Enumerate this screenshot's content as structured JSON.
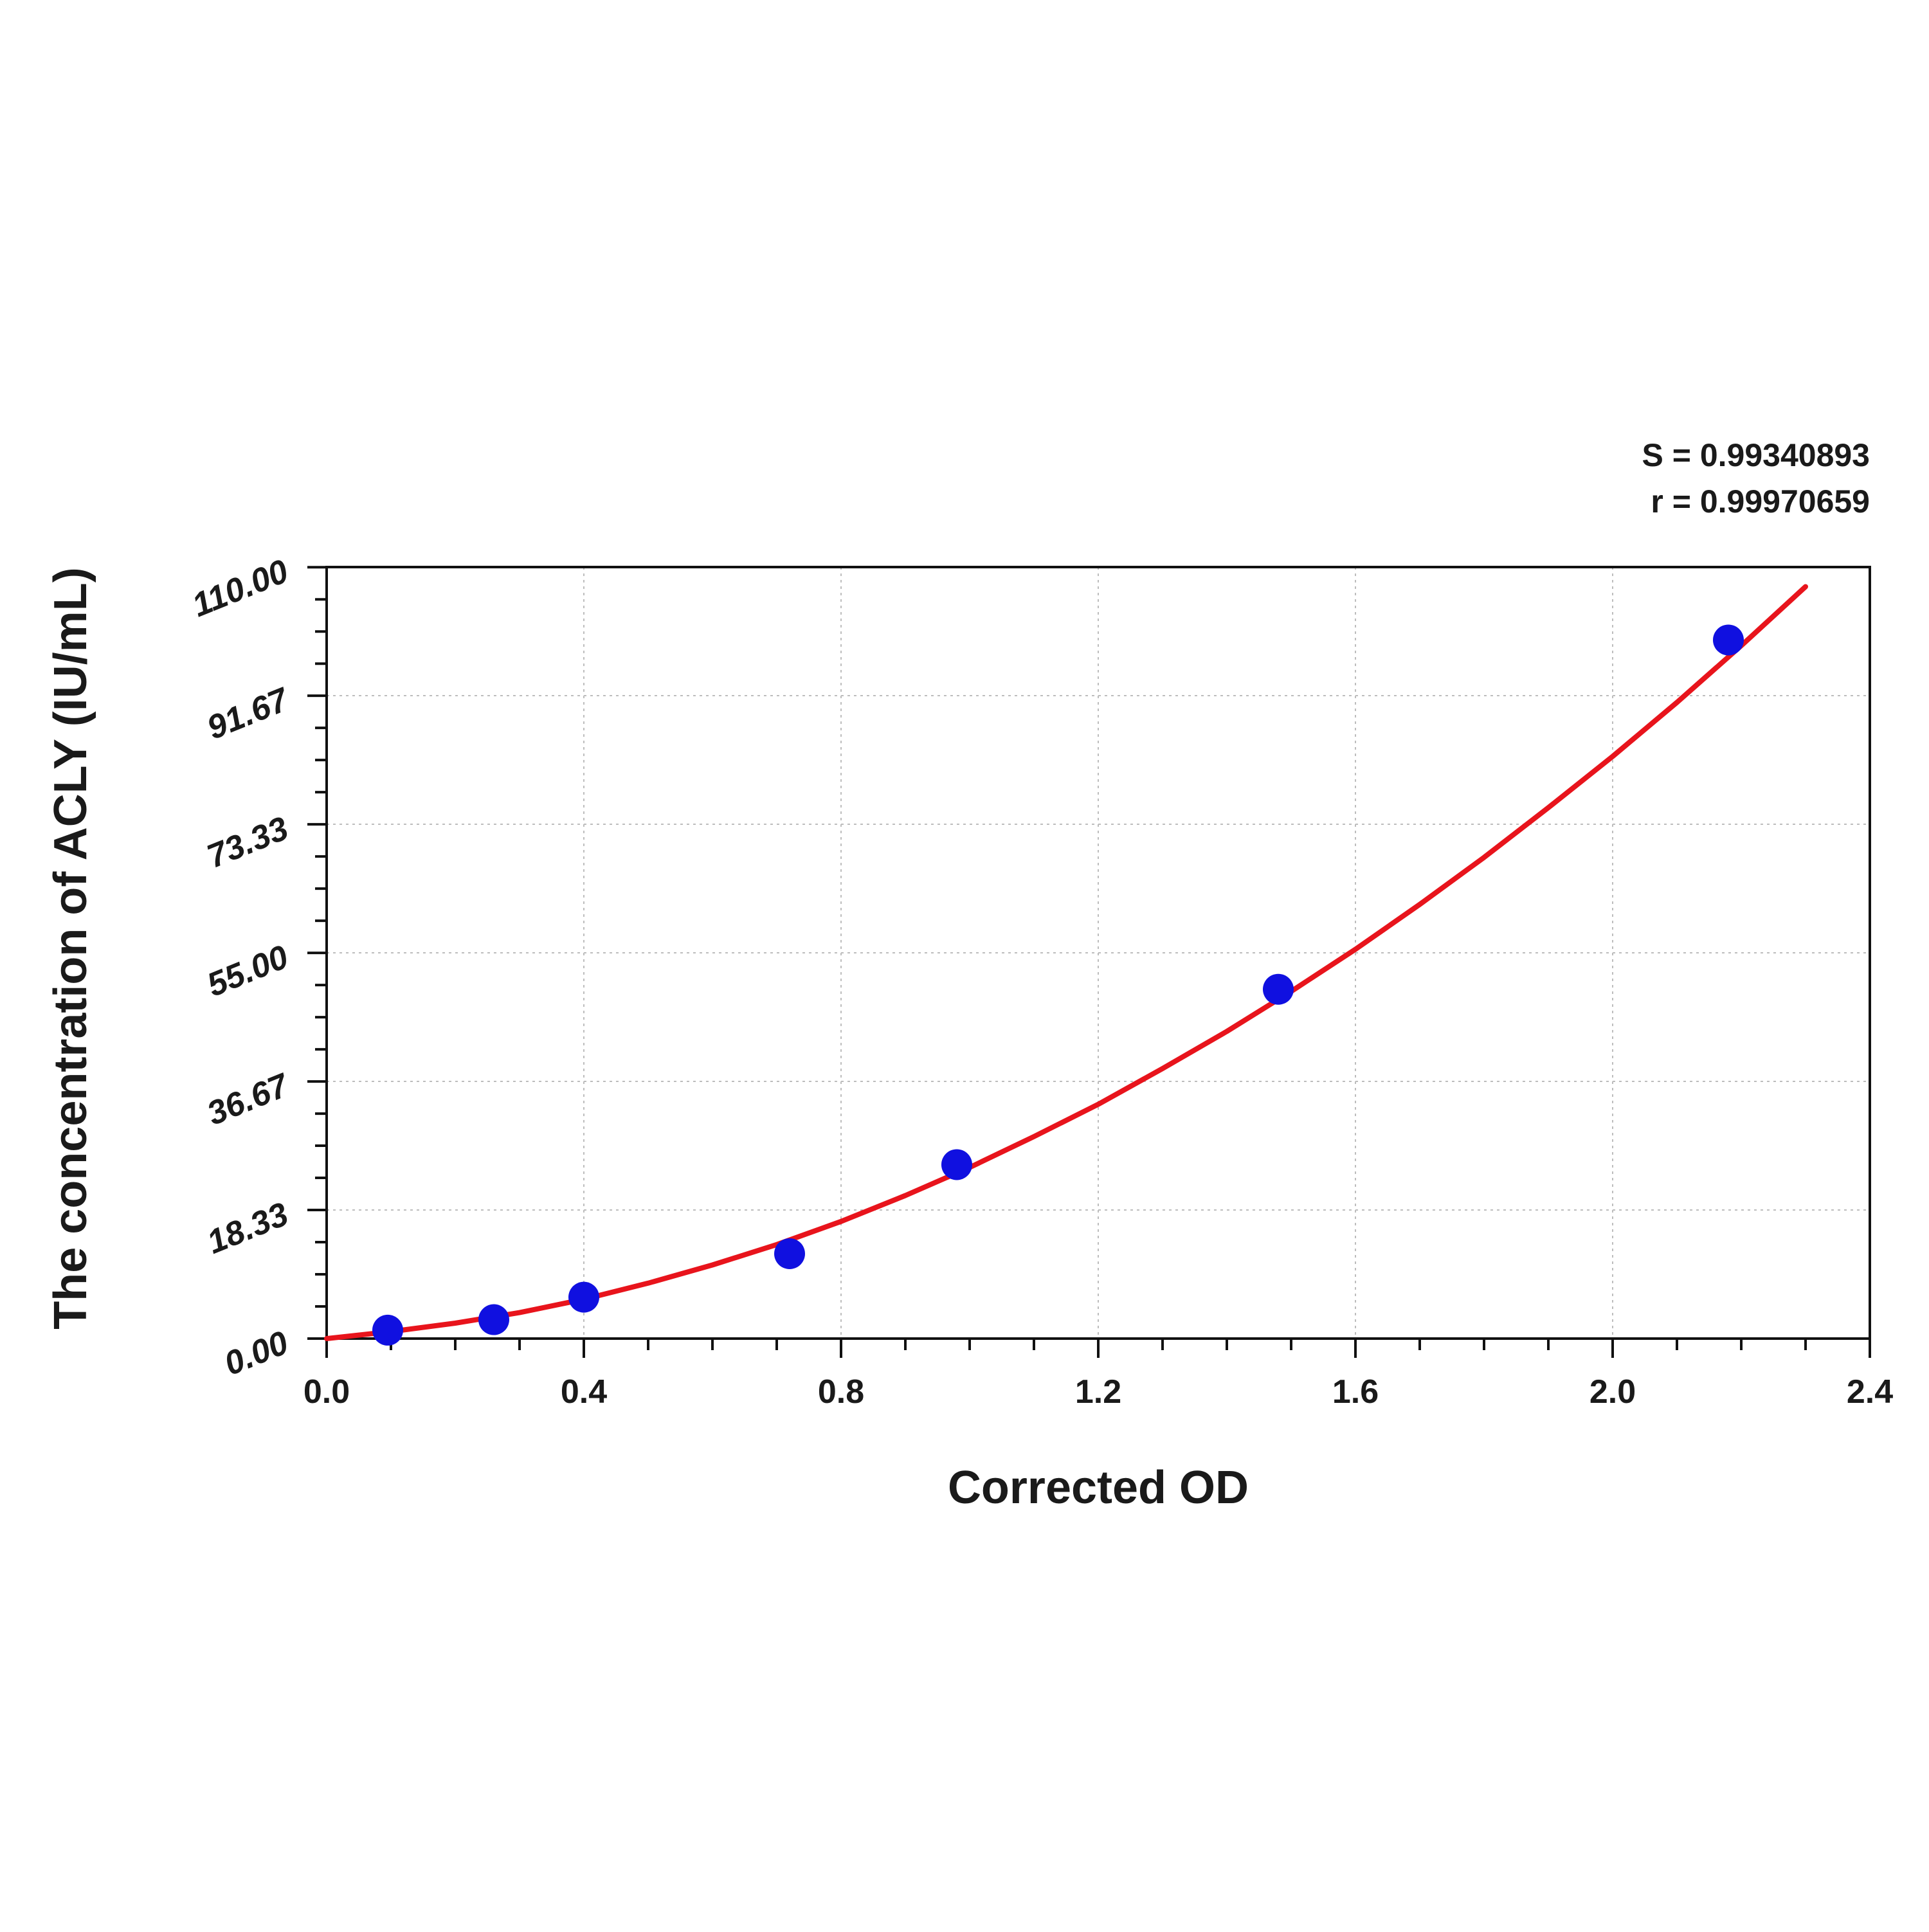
{
  "chart_data": {
    "type": "scatter",
    "title": "",
    "xlabel": "Corrected OD",
    "ylabel": "The concentration of ACLY (IU/mL)",
    "xlim": [
      0,
      2.4
    ],
    "ylim": [
      0,
      110
    ],
    "x_ticks": [
      "0.0",
      "0.4",
      "0.8",
      "1.2",
      "1.6",
      "2.0",
      "2.4"
    ],
    "x_tick_values": [
      0.0,
      0.4,
      0.8,
      1.2,
      1.6,
      2.0,
      2.4
    ],
    "y_ticks": [
      "0.00",
      "18.33",
      "36.67",
      "55.00",
      "73.33",
      "91.67",
      "110.00"
    ],
    "y_tick_values": [
      0,
      18.33,
      36.67,
      55.0,
      73.33,
      91.67,
      110.0
    ],
    "grid": true,
    "statistics": {
      "s_text": "S = 0.99340893",
      "r_text": "r = 0.99970659"
    },
    "series": [
      {
        "type": "scatter",
        "color": "#1010e0",
        "x": [
          0.095,
          0.26,
          0.4,
          0.72,
          0.98,
          1.48,
          2.18
        ],
        "y": [
          1.2,
          2.7,
          5.9,
          12.1,
          24.8,
          49.8,
          99.6
        ]
      },
      {
        "type": "line",
        "color": "#e8141c",
        "x": [
          0.0,
          0.1,
          0.2,
          0.3,
          0.4,
          0.5,
          0.6,
          0.7,
          0.8,
          0.9,
          1.0,
          1.1,
          1.2,
          1.3,
          1.4,
          1.5,
          1.6,
          1.7,
          1.8,
          1.9,
          2.0,
          2.1,
          2.2,
          2.3
        ],
        "y": [
          0.0,
          1.0,
          2.2,
          3.7,
          5.6,
          7.9,
          10.5,
          13.4,
          16.7,
          20.4,
          24.4,
          28.8,
          33.4,
          38.5,
          43.8,
          49.5,
          55.5,
          61.9,
          68.6,
          75.7,
          83.0,
          90.7,
          98.8,
          107.2
        ]
      }
    ]
  }
}
